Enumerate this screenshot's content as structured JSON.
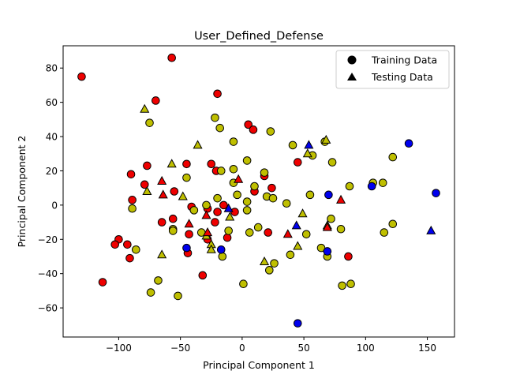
{
  "chart_data": {
    "type": "scatter",
    "title": "User_Defined_Defense",
    "xlabel": "Principal Component 1",
    "ylabel": "Principal Component 2",
    "xlim": [
      -145,
      172
    ],
    "ylim": [
      -77,
      93
    ],
    "xticks": [
      -100,
      -50,
      0,
      50,
      100,
      150
    ],
    "yticks": [
      -60,
      -40,
      -20,
      0,
      20,
      40,
      60,
      80
    ],
    "xtick_labels": [
      "−100",
      "−50",
      "0",
      "50",
      "100",
      "150"
    ],
    "ytick_labels": [
      "−60",
      "−40",
      "−20",
      "0",
      "20",
      "40",
      "60",
      "80"
    ],
    "grid": false,
    "legend": {
      "position": "top-right",
      "entries": [
        {
          "label": "Training Data",
          "marker": "circle"
        },
        {
          "label": "Testing Data",
          "marker": "triangle"
        }
      ]
    },
    "class_colors": {
      "red": "#ee0000",
      "yellow": "#bfbf00",
      "blue": "#0000ee"
    },
    "series": [
      {
        "marker": "circle",
        "points": [
          {
            "x": -130,
            "y": 75,
            "c": "red"
          },
          {
            "x": -57,
            "y": 86,
            "c": "red"
          },
          {
            "x": -70,
            "y": 61,
            "c": "red"
          },
          {
            "x": -20,
            "y": 65,
            "c": "red"
          },
          {
            "x": 5,
            "y": 47,
            "c": "red"
          },
          {
            "x": 9,
            "y": 44,
            "c": "red"
          },
          {
            "x": -90,
            "y": 18,
            "c": "red"
          },
          {
            "x": -77,
            "y": 23,
            "c": "red"
          },
          {
            "x": -79,
            "y": 12,
            "c": "red"
          },
          {
            "x": -89,
            "y": 3,
            "c": "red"
          },
          {
            "x": -45,
            "y": 24,
            "c": "red"
          },
          {
            "x": -25,
            "y": 24,
            "c": "red"
          },
          {
            "x": -21,
            "y": 20,
            "c": "red"
          },
          {
            "x": -55,
            "y": 8,
            "c": "red"
          },
          {
            "x": -41,
            "y": -1,
            "c": "red"
          },
          {
            "x": -28,
            "y": -2,
            "c": "red"
          },
          {
            "x": -20,
            "y": -4,
            "c": "red"
          },
          {
            "x": -15,
            "y": 0,
            "c": "red"
          },
          {
            "x": -6,
            "y": -4,
            "c": "red"
          },
          {
            "x": -65,
            "y": -10,
            "c": "red"
          },
          {
            "x": -56,
            "y": -8,
            "c": "red"
          },
          {
            "x": -43,
            "y": -17,
            "c": "red"
          },
          {
            "x": -22,
            "y": -10,
            "c": "red"
          },
          {
            "x": -12,
            "y": -19,
            "c": "red"
          },
          {
            "x": -100,
            "y": -20,
            "c": "red"
          },
          {
            "x": -103,
            "y": -23,
            "c": "red"
          },
          {
            "x": -93,
            "y": -23,
            "c": "red"
          },
          {
            "x": -91,
            "y": -31,
            "c": "red"
          },
          {
            "x": -44,
            "y": -28,
            "c": "red"
          },
          {
            "x": -28,
            "y": -20,
            "c": "red"
          },
          {
            "x": -32,
            "y": -41,
            "c": "red"
          },
          {
            "x": -113,
            "y": -45,
            "c": "red"
          },
          {
            "x": 10,
            "y": 8,
            "c": "red"
          },
          {
            "x": 18,
            "y": 17,
            "c": "red"
          },
          {
            "x": 24,
            "y": 10,
            "c": "red"
          },
          {
            "x": 21,
            "y": -16,
            "c": "red"
          },
          {
            "x": 45,
            "y": 25,
            "c": "red"
          },
          {
            "x": 86,
            "y": -30,
            "c": "red"
          },
          {
            "x": -75,
            "y": 48,
            "c": "yellow"
          },
          {
            "x": -22,
            "y": 51,
            "c": "yellow"
          },
          {
            "x": -18,
            "y": 45,
            "c": "yellow"
          },
          {
            "x": -7,
            "y": 37,
            "c": "yellow"
          },
          {
            "x": 23,
            "y": 43,
            "c": "yellow"
          },
          {
            "x": 41,
            "y": 35,
            "c": "yellow"
          },
          {
            "x": 57,
            "y": 29,
            "c": "yellow"
          },
          {
            "x": 67,
            "y": 37,
            "c": "yellow"
          },
          {
            "x": 73,
            "y": 25,
            "c": "yellow"
          },
          {
            "x": 4,
            "y": 26,
            "c": "yellow"
          },
          {
            "x": -7,
            "y": 21,
            "c": "yellow"
          },
          {
            "x": -17,
            "y": 20,
            "c": "yellow"
          },
          {
            "x": 18,
            "y": 19,
            "c": "yellow"
          },
          {
            "x": -7,
            "y": 13,
            "c": "yellow"
          },
          {
            "x": 10,
            "y": 11,
            "c": "yellow"
          },
          {
            "x": -4,
            "y": 6,
            "c": "yellow"
          },
          {
            "x": -20,
            "y": 4,
            "c": "yellow"
          },
          {
            "x": 4,
            "y": 2,
            "c": "yellow"
          },
          {
            "x": 20,
            "y": 5,
            "c": "yellow"
          },
          {
            "x": 25,
            "y": 4,
            "c": "yellow"
          },
          {
            "x": 36,
            "y": 1,
            "c": "yellow"
          },
          {
            "x": 55,
            "y": 6,
            "c": "yellow"
          },
          {
            "x": 87,
            "y": 11,
            "c": "yellow"
          },
          {
            "x": 106,
            "y": 13,
            "c": "yellow"
          },
          {
            "x": 114,
            "y": 13,
            "c": "yellow"
          },
          {
            "x": 122,
            "y": 28,
            "c": "yellow"
          },
          {
            "x": -45,
            "y": 16,
            "c": "yellow"
          },
          {
            "x": -89,
            "y": -2,
            "c": "yellow"
          },
          {
            "x": -29,
            "y": 0,
            "c": "yellow"
          },
          {
            "x": 4,
            "y": -3,
            "c": "yellow"
          },
          {
            "x": -39,
            "y": -3,
            "c": "yellow"
          },
          {
            "x": -56,
            "y": -14,
            "c": "yellow"
          },
          {
            "x": -56,
            "y": -15,
            "c": "yellow"
          },
          {
            "x": -33,
            "y": -16,
            "c": "yellow"
          },
          {
            "x": -11,
            "y": -15,
            "c": "yellow"
          },
          {
            "x": 6,
            "y": -16,
            "c": "yellow"
          },
          {
            "x": 13,
            "y": -13,
            "c": "yellow"
          },
          {
            "x": 52,
            "y": -17,
            "c": "yellow"
          },
          {
            "x": 72,
            "y": -8,
            "c": "yellow"
          },
          {
            "x": 80,
            "y": -14,
            "c": "yellow"
          },
          {
            "x": 115,
            "y": -16,
            "c": "yellow"
          },
          {
            "x": 122,
            "y": -11,
            "c": "yellow"
          },
          {
            "x": -86,
            "y": -26,
            "c": "yellow"
          },
          {
            "x": 39,
            "y": -29,
            "c": "yellow"
          },
          {
            "x": 64,
            "y": -25,
            "c": "yellow"
          },
          {
            "x": 69,
            "y": -30,
            "c": "yellow"
          },
          {
            "x": -16,
            "y": -30,
            "c": "yellow"
          },
          {
            "x": 22,
            "y": -38,
            "c": "yellow"
          },
          {
            "x": 26,
            "y": -34,
            "c": "yellow"
          },
          {
            "x": 1,
            "y": -46,
            "c": "yellow"
          },
          {
            "x": -68,
            "y": -44,
            "c": "yellow"
          },
          {
            "x": -74,
            "y": -51,
            "c": "yellow"
          },
          {
            "x": -52,
            "y": -53,
            "c": "yellow"
          },
          {
            "x": 81,
            "y": -47,
            "c": "yellow"
          },
          {
            "x": 88,
            "y": -46,
            "c": "yellow"
          },
          {
            "x": 70,
            "y": 6,
            "c": "blue"
          },
          {
            "x": 105,
            "y": 11,
            "c": "blue"
          },
          {
            "x": 135,
            "y": 36,
            "c": "blue"
          },
          {
            "x": 157,
            "y": 7,
            "c": "blue"
          },
          {
            "x": -45,
            "y": -25,
            "c": "blue"
          },
          {
            "x": -17,
            "y": -26,
            "c": "blue"
          },
          {
            "x": 69,
            "y": -27,
            "c": "blue"
          },
          {
            "x": 45,
            "y": -69,
            "c": "blue"
          }
        ]
      },
      {
        "marker": "triangle",
        "points": [
          {
            "x": -79,
            "y": 56,
            "c": "yellow"
          },
          {
            "x": -36,
            "y": 35,
            "c": "yellow"
          },
          {
            "x": -77,
            "y": 8,
            "c": "yellow"
          },
          {
            "x": -57,
            "y": 24,
            "c": "yellow"
          },
          {
            "x": -65,
            "y": -29,
            "c": "yellow"
          },
          {
            "x": -48,
            "y": 5,
            "c": "yellow"
          },
          {
            "x": -29,
            "y": -18,
            "c": "yellow"
          },
          {
            "x": -25,
            "y": -23,
            "c": "yellow"
          },
          {
            "x": -25,
            "y": -26,
            "c": "yellow"
          },
          {
            "x": -10,
            "y": -7,
            "c": "yellow"
          },
          {
            "x": 18,
            "y": -33,
            "c": "yellow"
          },
          {
            "x": 45,
            "y": -24,
            "c": "yellow"
          },
          {
            "x": 49,
            "y": -5,
            "c": "yellow"
          },
          {
            "x": 53,
            "y": 30,
            "c": "yellow"
          },
          {
            "x": 68,
            "y": 38,
            "c": "yellow"
          },
          {
            "x": 69,
            "y": -12,
            "c": "yellow"
          },
          {
            "x": -65,
            "y": 14,
            "c": "red"
          },
          {
            "x": -64,
            "y": 6,
            "c": "red"
          },
          {
            "x": -43,
            "y": -11,
            "c": "red"
          },
          {
            "x": -29,
            "y": -6,
            "c": "red"
          },
          {
            "x": -28,
            "y": -16,
            "c": "red"
          },
          {
            "x": -3,
            "y": 15,
            "c": "red"
          },
          {
            "x": 37,
            "y": -17,
            "c": "red"
          },
          {
            "x": 69,
            "y": -13,
            "c": "red"
          },
          {
            "x": 80,
            "y": 3,
            "c": "red"
          },
          {
            "x": -11,
            "y": -2,
            "c": "blue"
          },
          {
            "x": 54,
            "y": 35,
            "c": "blue"
          },
          {
            "x": 44,
            "y": -12,
            "c": "blue"
          },
          {
            "x": 153,
            "y": -15,
            "c": "blue"
          }
        ]
      }
    ]
  }
}
